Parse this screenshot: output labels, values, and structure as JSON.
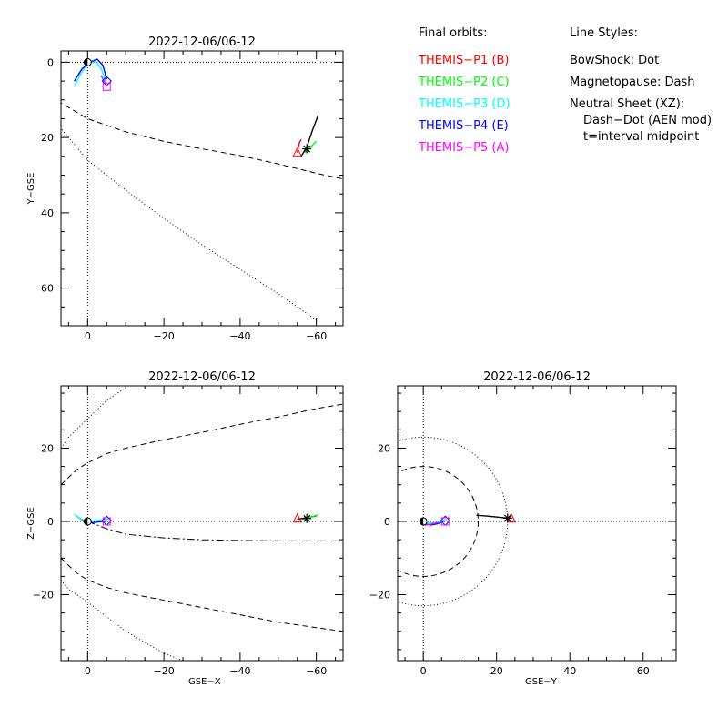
{
  "legend": {
    "orbits_title": "Final orbits:",
    "probes": [
      {
        "label": "THEMIS−P1 (B)",
        "color": "#ff0000"
      },
      {
        "label": "THEMIS−P2 (C)",
        "color": "#00ff00"
      },
      {
        "label": "THEMIS−P3 (D)",
        "color": "#00ffff"
      },
      {
        "label": "THEMIS−P4 (E)",
        "color": "#0000ff"
      },
      {
        "label": "THEMIS−P5 (A)",
        "color": "#ff00ff"
      }
    ],
    "styles_title": "Line Styles:",
    "style_lines": [
      "BowShock: Dot",
      "Magnetopause: Dash",
      "Neutral Sheet (XZ):",
      "Dash−Dot (AEN mod)",
      "t=interval midpoint"
    ]
  },
  "chart_data": [
    {
      "type": "line",
      "title": "2022-12-06/06-12",
      "xlabel": "",
      "ylabel": "Y−GSE",
      "xlim": [
        7,
        -67
      ],
      "ylim": [
        -3,
        70
      ],
      "y_inverted": true,
      "xticks": [
        0,
        -20,
        -40,
        -60
      ],
      "yticks": [
        0,
        20,
        40,
        60
      ],
      "series": [
        {
          "style": "magnetopause",
          "x": [
            10,
            0,
            -10,
            -20,
            -30,
            -40,
            -50,
            -60,
            -67
          ],
          "y": [
            9,
            15,
            18.5,
            21,
            23,
            24.8,
            27,
            29.5,
            31
          ]
        },
        {
          "style": "bowshock",
          "x": [
            10,
            0,
            -10,
            -20,
            -30,
            -40,
            -50,
            -60
          ],
          "y": [
            14,
            26,
            34,
            41.5,
            48.5,
            55,
            61.5,
            68.5
          ]
        },
        {
          "style": "orbit",
          "color": "#0000ff",
          "x": [
            3.5,
            1.5,
            -0.5,
            -2.5,
            -4,
            -5
          ],
          "y": [
            5,
            1.8,
            0,
            -0.8,
            0.8,
            4.5
          ]
        },
        {
          "style": "orbit",
          "color": "#00ffff",
          "x": [
            3.5,
            1.5,
            0,
            -2,
            -3.5,
            -4.8
          ],
          "y": [
            6.3,
            2.6,
            0.6,
            -0.3,
            1.5,
            5.2
          ]
        },
        {
          "style": "orbit",
          "color": "#ff00ff",
          "x": [
            -3.5,
            -4.3,
            -5
          ],
          "y": [
            3.5,
            5,
            6.5
          ]
        },
        {
          "style": "orbit",
          "color": "#000000",
          "x": [
            -56,
            -57.5,
            -59,
            -60.5
          ],
          "y": [
            25,
            22.5,
            18,
            14
          ]
        },
        {
          "style": "orbit",
          "color": "#00ff00",
          "x": [
            -57,
            -58.5,
            -60
          ],
          "y": [
            24,
            22.5,
            21
          ]
        },
        {
          "style": "orbit",
          "color": "#ff0000",
          "x": [
            -55,
            -55.5,
            -56
          ],
          "y": [
            24,
            21.5,
            20.5
          ]
        }
      ],
      "markers": [
        {
          "shape": "triangle",
          "color": "#ff0000",
          "x": -55,
          "y": 24
        },
        {
          "shape": "diamond",
          "color": "#0000ff",
          "x": -5,
          "y": 5
        },
        {
          "shape": "square",
          "color": "#ff00ff",
          "x": -5,
          "y": 6.5
        },
        {
          "shape": "star",
          "color": "#000000",
          "x": -57.5,
          "y": 23
        }
      ]
    },
    {
      "type": "line",
      "title": "2022-12-06/06-12",
      "xlabel": "GSE−X",
      "ylabel": "Z−GSE",
      "xlim": [
        7,
        -67
      ],
      "ylim": [
        -38,
        37
      ],
      "y_inverted": false,
      "xticks": [
        0,
        -20,
        -40,
        -60
      ],
      "yticks": [
        -20,
        0,
        20
      ],
      "series": [
        {
          "style": "magnetopause",
          "x": [
            7,
            3,
            0,
            -5,
            -10,
            -20,
            -30,
            -40,
            -50,
            -60,
            -67
          ],
          "y": [
            10,
            14,
            16,
            18.5,
            20,
            22.3,
            24.3,
            26.5,
            28.5,
            30.8,
            32
          ]
        },
        {
          "style": "magnetopause",
          "x": [
            7,
            3,
            0,
            -5,
            -10,
            -20,
            -30,
            -40,
            -50,
            -60,
            -67
          ],
          "y": [
            -10,
            -14,
            -16,
            -18,
            -19.5,
            -21.5,
            -23.5,
            -25.5,
            -27.5,
            -29,
            -30
          ]
        },
        {
          "style": "bowshock",
          "x": [
            7,
            5,
            0,
            -5,
            -10
          ],
          "y": [
            20,
            23,
            28,
            33,
            36.5
          ]
        },
        {
          "style": "bowshock",
          "x": [
            7,
            5,
            0,
            -5,
            -10,
            -15,
            -20,
            -25
          ],
          "y": [
            -16,
            -18.5,
            -22,
            -26,
            -30,
            -33,
            -36,
            -38
          ]
        },
        {
          "style": "neutral",
          "x": [
            0,
            -5,
            -10,
            -20,
            -30,
            -40,
            -50,
            -60,
            -67
          ],
          "y": [
            0,
            -2,
            -3.5,
            -4.5,
            -5,
            -5.2,
            -5.3,
            -5.3,
            -5.3
          ]
        },
        {
          "style": "orbit",
          "color": "#0000ff",
          "x": [
            3,
            1.5,
            0,
            -1.5,
            -3,
            -4.5
          ],
          "y": [
            1.5,
            0.5,
            -0.2,
            -0.3,
            -0.1,
            0
          ]
        },
        {
          "style": "orbit",
          "color": "#00ffff",
          "x": [
            3.5,
            2,
            0,
            -2,
            -4,
            -5.5
          ],
          "y": [
            2,
            0.8,
            0,
            0.2,
            0.4,
            0.6
          ]
        },
        {
          "style": "orbit",
          "color": "#000000",
          "x": [
            -55,
            -57.5,
            -60
          ],
          "y": [
            0.6,
            1,
            1.5
          ]
        },
        {
          "style": "orbit",
          "color": "#00ff00",
          "x": [
            -56,
            -58,
            -60.5
          ],
          "y": [
            0.5,
            1,
            1.8
          ]
        }
      ],
      "markers": [
        {
          "shape": "triangle",
          "color": "#ff0000",
          "x": -55,
          "y": 0.8
        },
        {
          "shape": "diamond",
          "color": "#0000ff",
          "x": -5,
          "y": 0.2
        },
        {
          "shape": "square",
          "color": "#ff00ff",
          "x": -5,
          "y": 0
        },
        {
          "shape": "star",
          "color": "#000000",
          "x": -57.5,
          "y": 0.8
        }
      ]
    },
    {
      "type": "line",
      "title": "2022-12-06/06-12",
      "xlabel": "GSE−Y",
      "ylabel": "",
      "xlim": [
        -7,
        69
      ],
      "ylim": [
        -38,
        37
      ],
      "y_inverted": false,
      "xticks": [
        0,
        20,
        40,
        60
      ],
      "yticks": [
        -20,
        0,
        20
      ],
      "series": [
        {
          "style": "circle_magnetopause",
          "r": 15
        },
        {
          "style": "circle_bowshock",
          "r": 23
        },
        {
          "style": "orbit",
          "color": "#000000",
          "x": [
            14.5,
            18,
            21,
            23
          ],
          "y": [
            1.7,
            1.4,
            1.1,
            0.9
          ]
        },
        {
          "style": "orbit",
          "color": "#0000ff",
          "x": [
            -1,
            0,
            2,
            4,
            5.5
          ],
          "y": [
            0.5,
            -0.6,
            -1,
            -0.6,
            0
          ]
        },
        {
          "style": "orbit",
          "color": "#00ffff",
          "x": [
            -0.5,
            1,
            3,
            5,
            6.5
          ],
          "y": [
            0.3,
            -0.5,
            -0.4,
            0.2,
            0.6
          ]
        },
        {
          "style": "orbit",
          "color": "#ff00ff",
          "x": [
            -1,
            0.5,
            2,
            4
          ],
          "y": [
            -0.5,
            -1,
            -0.8,
            -0.3
          ]
        }
      ],
      "markers": [
        {
          "shape": "triangle",
          "color": "#ff0000",
          "x": 24,
          "y": 0.8
        },
        {
          "shape": "diamond",
          "color": "#0000ff",
          "x": 6,
          "y": 0.2
        },
        {
          "shape": "square",
          "color": "#ff00ff",
          "x": 6,
          "y": 0
        },
        {
          "shape": "star",
          "color": "#000000",
          "x": 23,
          "y": 0.9
        }
      ]
    }
  ]
}
